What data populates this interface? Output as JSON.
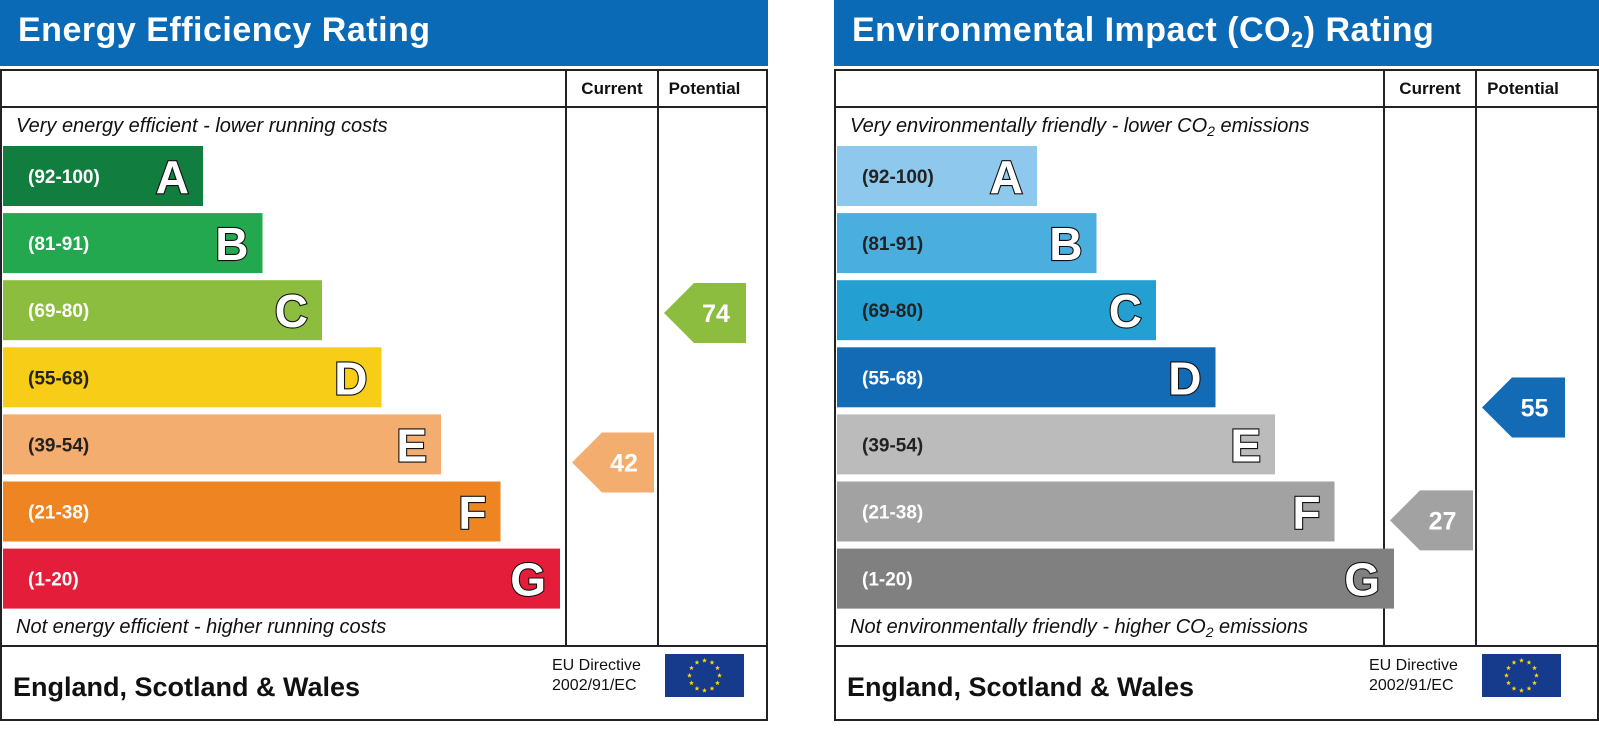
{
  "chart_data": [
    {
      "type": "bar",
      "title": "Energy Efficiency Rating",
      "columns": [
        "Current",
        "Potential"
      ],
      "top_caption": "Very energy efficient - lower running costs",
      "bottom_caption": "Not energy efficient - higher running costs",
      "bands": [
        {
          "range": "(92-100)",
          "letter": "A",
          "color": "#117d3f"
        },
        {
          "range": "(81-91)",
          "letter": "B",
          "color": "#23a84f"
        },
        {
          "range": "(69-80)",
          "letter": "C",
          "color": "#8cbd3f"
        },
        {
          "range": "(55-68)",
          "letter": "D",
          "color": "#f7cd17"
        },
        {
          "range": "(39-54)",
          "letter": "E",
          "color": "#f3ad6e"
        },
        {
          "range": "(21-38)",
          "letter": "F",
          "color": "#ee8422"
        },
        {
          "range": "(1-20)",
          "letter": "G",
          "color": "#e41d3a"
        }
      ],
      "current": {
        "value": 42,
        "band": "E",
        "color": "#f3ad6e"
      },
      "potential": {
        "value": 74,
        "band": "C",
        "color": "#8cbd3f"
      }
    },
    {
      "type": "bar",
      "title": "Environmental Impact (CO",
      "title_sub": "2",
      "title_suffix": ") Rating",
      "columns": [
        "Current",
        "Potential"
      ],
      "top_caption": "Very environmentally friendly - lower CO",
      "top_caption_suffix": " emissions",
      "bottom_caption": "Not environmentally friendly - higher CO",
      "bottom_caption_suffix": " emissions",
      "caption_sub": "2",
      "bands": [
        {
          "range": "(92-100)",
          "letter": "A",
          "color": "#8ec8ec"
        },
        {
          "range": "(81-91)",
          "letter": "B",
          "color": "#4aaedf"
        },
        {
          "range": "(69-80)",
          "letter": "C",
          "color": "#239fd1"
        },
        {
          "range": "(55-68)",
          "letter": "D",
          "color": "#136ab5"
        },
        {
          "range": "(39-54)",
          "letter": "E",
          "color": "#bcbbbb"
        },
        {
          "range": "(21-38)",
          "letter": "F",
          "color": "#a2a2a2"
        },
        {
          "range": "(1-20)",
          "letter": "G",
          "color": "#808080"
        }
      ],
      "current": {
        "value": 27,
        "band": "F",
        "color": "#a2a2a2"
      },
      "potential": {
        "value": 55,
        "band": "D",
        "color": "#136ab5"
      }
    }
  ],
  "footer": {
    "region": "England, Scotland & Wales",
    "directive_line1": "EU Directive",
    "directive_line2": "2002/91/EC",
    "flag_icon": "eu-flag-icon"
  }
}
